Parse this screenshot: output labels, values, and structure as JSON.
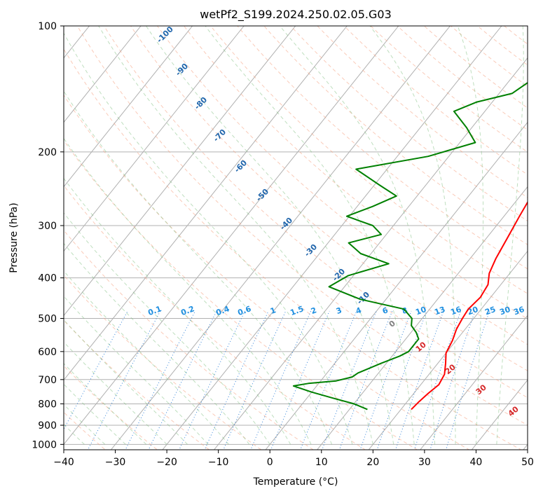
{
  "chart_data": {
    "type": "line",
    "title": "wetPf2_S199.2024.250.02.05.G03",
    "xlabel": "Temperature (°C)",
    "ylabel": "Pressure (hPa)",
    "xlim": [
      -40,
      50
    ],
    "ylim": [
      1030,
      100
    ],
    "y_scale": "log",
    "grid": true,
    "x_ticks": [
      -40,
      -30,
      -20,
      -10,
      0,
      10,
      20,
      30,
      40,
      50
    ],
    "y_ticks": [
      1000,
      900,
      800,
      700,
      600,
      500,
      400,
      300,
      200,
      100
    ],
    "series": [
      {
        "color": "#ff0000",
        "points": [
          [
            22.0,
            825
          ],
          [
            22.3,
            790
          ],
          [
            22.8,
            755
          ],
          [
            23.5,
            720
          ],
          [
            23.0,
            680
          ],
          [
            21.5,
            640
          ],
          [
            20.0,
            605
          ],
          [
            19.3,
            565
          ],
          [
            18.3,
            530
          ],
          [
            17.8,
            500
          ],
          [
            17.5,
            475
          ],
          [
            18.0,
            445
          ],
          [
            17.5,
            415
          ],
          [
            16.0,
            390
          ],
          [
            15.0,
            360
          ],
          [
            14.0,
            320
          ],
          [
            13.0,
            285
          ],
          [
            12.0,
            250
          ],
          [
            11.0,
            220
          ],
          [
            10.0,
            200
          ],
          [
            9.2,
            185
          ],
          [
            8.8,
            170
          ],
          [
            9.0,
            155
          ],
          [
            9.0,
            140
          ],
          [
            9.2,
            128
          ],
          [
            10.5,
            117
          ],
          [
            12.0,
            108
          ],
          [
            13.0,
            100
          ]
        ]
      },
      {
        "color": "#008000",
        "points": [
          [
            13.5,
            825
          ],
          [
            10.0,
            800
          ],
          [
            5.0,
            775
          ],
          [
            0.0,
            750
          ],
          [
            -4.5,
            725
          ],
          [
            -2.0,
            715
          ],
          [
            3.0,
            705
          ],
          [
            5.5,
            690
          ],
          [
            6.0,
            675
          ],
          [
            9.0,
            640
          ],
          [
            11.5,
            615
          ],
          [
            12.5,
            600
          ],
          [
            12.5,
            580
          ],
          [
            12.5,
            560
          ],
          [
            11.0,
            540
          ],
          [
            9.0,
            520
          ],
          [
            8.0,
            500
          ],
          [
            5.0,
            475
          ],
          [
            -5.0,
            450
          ],
          [
            -13.0,
            420
          ],
          [
            -11.0,
            395
          ],
          [
            -5.0,
            370
          ],
          [
            -12.0,
            350
          ],
          [
            -16.0,
            330
          ],
          [
            -11.0,
            315
          ],
          [
            -14.0,
            300
          ],
          [
            -20.5,
            285
          ],
          [
            -17.0,
            270
          ],
          [
            -14.0,
            255
          ],
          [
            -19.0,
            240
          ],
          [
            -26.0,
            220
          ],
          [
            -14.0,
            205
          ],
          [
            -7.0,
            190
          ],
          [
            -11.0,
            175
          ],
          [
            -16.0,
            160
          ],
          [
            -13.0,
            152
          ],
          [
            -7.5,
            145
          ],
          [
            -5.0,
            130
          ],
          [
            -3.0,
            117
          ],
          [
            -2.0,
            108
          ],
          [
            0.0,
            100
          ]
        ]
      }
    ],
    "dry_adiabat_labels": [
      "-100",
      "-90",
      "-80",
      "-70",
      "-60",
      "-50",
      "-40",
      "-30",
      "-20",
      "-10"
    ],
    "mixing_ratio_labels": [
      "0.1",
      "0.2",
      "0.4",
      "0.6",
      "1",
      "1.5",
      "2",
      "3",
      "4",
      "6",
      "8",
      "10",
      "13",
      "16",
      "20",
      "25",
      "30",
      "36"
    ],
    "moist_adiabat_labels": [
      "0",
      "10",
      "20",
      "30",
      "40"
    ]
  }
}
